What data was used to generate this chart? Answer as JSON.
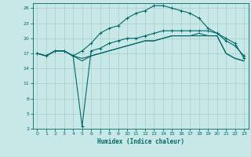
{
  "xlabel": "Humidex (Indice chaleur)",
  "background_color": "#c8e8e8",
  "grid_color": "#a8cece",
  "line_color": "#006868",
  "xlim": [
    -0.5,
    23.5
  ],
  "ylim": [
    2,
    27
  ],
  "yticks": [
    2,
    5,
    8,
    11,
    14,
    17,
    20,
    23,
    26
  ],
  "xticks": [
    0,
    1,
    2,
    3,
    4,
    5,
    6,
    7,
    8,
    9,
    10,
    11,
    12,
    13,
    14,
    15,
    16,
    17,
    18,
    19,
    20,
    21,
    22,
    23
  ],
  "line1_x": [
    0,
    1,
    2,
    3,
    4,
    5,
    6,
    7,
    8,
    9,
    10,
    11,
    12,
    13,
    14,
    15,
    16,
    17,
    18,
    19,
    20,
    21,
    22,
    23
  ],
  "line1_y": [
    17,
    16.5,
    17.5,
    17.5,
    16.5,
    17.5,
    19,
    21,
    22,
    22.5,
    24,
    25,
    25.5,
    26.5,
    26.5,
    26,
    25.5,
    25,
    24,
    22,
    21,
    19.5,
    18.5,
    16.5
  ],
  "line2_x": [
    0,
    1,
    2,
    3,
    4,
    5,
    6,
    7,
    8,
    9,
    10,
    11,
    12,
    13,
    14,
    15,
    16,
    17,
    18,
    19,
    20,
    21,
    22,
    23
  ],
  "line2_y": [
    17,
    16.5,
    17.5,
    17.5,
    16.5,
    2.5,
    17.5,
    18,
    19,
    19.5,
    20,
    20,
    20.5,
    21,
    21.5,
    21.5,
    21.5,
    21.5,
    21.5,
    21.5,
    21,
    20,
    19,
    16
  ],
  "line3_x": [
    0,
    1,
    2,
    3,
    4,
    5,
    6,
    7,
    8,
    9,
    10,
    11,
    12,
    13,
    14,
    15,
    16,
    17,
    18,
    19,
    20,
    21,
    22,
    23
  ],
  "line3_y": [
    17,
    16.5,
    17.5,
    17.5,
    16.5,
    15.5,
    16.5,
    17,
    17.5,
    18,
    18.5,
    19,
    19.5,
    19.5,
    20,
    20.5,
    20.5,
    20.5,
    21,
    20.5,
    20.5,
    17,
    16,
    15.5
  ],
  "line4_x": [
    0,
    1,
    2,
    3,
    4,
    5,
    6,
    7,
    8,
    9,
    10,
    11,
    12,
    13,
    14,
    15,
    16,
    17,
    18,
    19,
    20,
    21,
    22,
    23
  ],
  "line4_y": [
    17,
    16.5,
    17.5,
    17.5,
    16.5,
    16,
    16.5,
    17,
    17.5,
    18,
    18.5,
    19,
    19.5,
    19.5,
    20,
    20.5,
    20.5,
    20.5,
    20.5,
    20.5,
    20.5,
    17,
    16,
    15.5
  ]
}
